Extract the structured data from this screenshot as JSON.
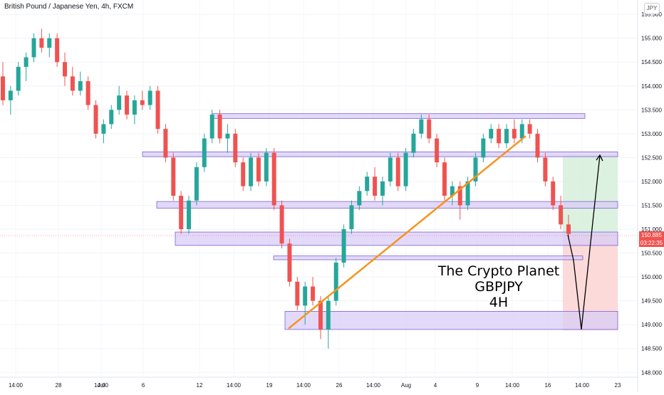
{
  "header": {
    "symbol_title": "British Pound / Japanese Yen, 4h, FXCM",
    "currency_label": "JPY"
  },
  "annotation": {
    "line1": "The Crypto Planet",
    "line2": "GBPJPY",
    "line3": "4H"
  },
  "last_price": {
    "value": "150.885",
    "countdown": "03:22:35"
  },
  "colors": {
    "up": "#26a69a",
    "down": "#ef5350",
    "zone_fill": "#d9ccf5",
    "zone_stroke": "#7b61d6",
    "trendline": "#f7931a",
    "target_fill": "#d6eed9",
    "stop_fill": "#fbd3d3"
  },
  "chart_data": {
    "type": "candlestick",
    "y_axis": {
      "min": 147.9,
      "max": 155.8,
      "tick_labels": [
        "155.500",
        "155.000",
        "154.500",
        "154.000",
        "153.500",
        "153.000",
        "152.500",
        "152.000",
        "151.500",
        "151.000",
        "150.500",
        "150.000",
        "149.500",
        "149.000",
        "148.500",
        "148.000"
      ]
    },
    "x_axis_labels": [
      "14:00",
      "28",
      "14:00",
      "Jul",
      "6",
      "12",
      "14:00",
      "19",
      "14:00",
      "26",
      "14:00",
      "Aug",
      "4",
      "9",
      "14:00",
      "16",
      "14:00",
      "23"
    ],
    "candles_ohlc": [
      [
        154.2,
        154.5,
        153.6,
        153.7
      ],
      [
        153.7,
        154.0,
        153.4,
        153.9
      ],
      [
        153.9,
        154.5,
        153.8,
        154.4
      ],
      [
        154.4,
        154.7,
        154.1,
        154.6
      ],
      [
        154.6,
        155.1,
        154.5,
        155.0
      ],
      [
        155.0,
        155.2,
        154.7,
        154.8
      ],
      [
        154.8,
        155.1,
        154.6,
        155.0
      ],
      [
        155.0,
        155.1,
        154.4,
        154.5
      ],
      [
        154.5,
        154.7,
        154.0,
        154.2
      ],
      [
        154.2,
        154.4,
        153.8,
        153.9
      ],
      [
        153.9,
        154.3,
        153.8,
        154.1
      ],
      [
        154.1,
        154.2,
        153.5,
        153.6
      ],
      [
        153.6,
        153.7,
        152.9,
        153.0
      ],
      [
        153.0,
        153.3,
        152.8,
        153.2
      ],
      [
        153.2,
        153.6,
        153.1,
        153.5
      ],
      [
        153.5,
        154.0,
        153.4,
        153.8
      ],
      [
        153.8,
        153.9,
        153.3,
        153.4
      ],
      [
        153.4,
        153.8,
        153.2,
        153.7
      ],
      [
        153.7,
        153.9,
        153.5,
        153.6
      ],
      [
        153.6,
        154.0,
        153.5,
        153.9
      ],
      [
        153.9,
        154.0,
        153.0,
        153.1
      ],
      [
        153.1,
        153.2,
        152.4,
        152.5
      ],
      [
        152.5,
        152.6,
        151.6,
        151.7
      ],
      [
        151.7,
        151.8,
        150.9,
        151.0
      ],
      [
        151.0,
        151.7,
        150.9,
        151.6
      ],
      [
        151.6,
        152.4,
        151.5,
        152.3
      ],
      [
        152.3,
        153.0,
        152.2,
        152.9
      ],
      [
        152.9,
        153.5,
        152.8,
        153.4
      ],
      [
        153.4,
        153.5,
        152.8,
        152.9
      ],
      [
        152.9,
        153.2,
        152.6,
        153.0
      ],
      [
        153.0,
        153.1,
        152.3,
        152.4
      ],
      [
        152.4,
        152.5,
        151.8,
        151.9
      ],
      [
        151.9,
        152.6,
        151.8,
        152.5
      ],
      [
        152.5,
        152.6,
        151.9,
        152.0
      ],
      [
        152.0,
        152.7,
        151.9,
        152.6
      ],
      [
        152.6,
        152.7,
        151.4,
        151.5
      ],
      [
        151.5,
        151.6,
        150.6,
        150.7
      ],
      [
        150.7,
        150.8,
        149.8,
        149.9
      ],
      [
        149.9,
        150.0,
        149.3,
        149.4
      ],
      [
        149.4,
        149.9,
        149.0,
        149.8
      ],
      [
        149.8,
        150.0,
        149.4,
        149.5
      ],
      [
        149.5,
        149.6,
        148.7,
        148.9
      ],
      [
        148.9,
        149.6,
        148.5,
        149.5
      ],
      [
        149.5,
        150.4,
        149.4,
        150.3
      ],
      [
        150.3,
        151.1,
        150.2,
        151.0
      ],
      [
        151.0,
        151.6,
        150.9,
        151.5
      ],
      [
        151.5,
        151.9,
        151.4,
        151.8
      ],
      [
        151.8,
        152.2,
        151.7,
        152.1
      ],
      [
        152.1,
        152.3,
        151.6,
        151.7
      ],
      [
        151.7,
        152.1,
        151.5,
        152.0
      ],
      [
        152.0,
        152.6,
        151.9,
        152.5
      ],
      [
        152.5,
        152.6,
        151.8,
        151.9
      ],
      [
        151.9,
        152.7,
        151.8,
        152.6
      ],
      [
        152.6,
        153.1,
        152.5,
        153.0
      ],
      [
        153.0,
        153.4,
        152.9,
        153.3
      ],
      [
        153.3,
        153.4,
        152.8,
        152.9
      ],
      [
        152.9,
        153.0,
        152.3,
        152.4
      ],
      [
        152.4,
        152.5,
        151.6,
        151.7
      ],
      [
        151.7,
        152.0,
        151.5,
        151.9
      ],
      [
        151.9,
        152.0,
        151.2,
        151.5
      ],
      [
        151.5,
        152.1,
        151.4,
        152.0
      ],
      [
        152.0,
        152.6,
        151.9,
        152.5
      ],
      [
        152.5,
        153.0,
        152.4,
        152.9
      ],
      [
        152.9,
        153.2,
        152.8,
        153.1
      ],
      [
        153.1,
        153.2,
        152.7,
        152.8
      ],
      [
        152.8,
        153.2,
        152.7,
        153.1
      ],
      [
        153.1,
        153.3,
        152.8,
        152.9
      ],
      [
        152.9,
        153.3,
        152.8,
        153.2
      ],
      [
        153.2,
        153.3,
        152.9,
        153.0
      ],
      [
        153.0,
        153.1,
        152.4,
        152.5
      ],
      [
        152.5,
        152.6,
        151.9,
        152.0
      ],
      [
        152.0,
        152.1,
        151.4,
        151.5
      ],
      [
        151.5,
        151.7,
        151.0,
        151.1
      ],
      [
        151.1,
        151.3,
        150.8,
        150.9
      ]
    ],
    "zones": [
      {
        "low": 153.32,
        "high": 153.42
      },
      {
        "low": 152.52,
        "high": 152.62
      },
      {
        "low": 151.44,
        "high": 151.58
      },
      {
        "low": 150.66,
        "high": 150.94
      },
      {
        "low": 150.36,
        "high": 150.44
      },
      {
        "low": 148.9,
        "high": 149.28
      }
    ],
    "trendline": {
      "from_price": 148.92,
      "to_price": 152.95
    },
    "position": {
      "entry": 150.885,
      "target": 152.55,
      "stop": 148.88
    },
    "projection": [
      150.885,
      150.35,
      148.9,
      152.55
    ]
  }
}
